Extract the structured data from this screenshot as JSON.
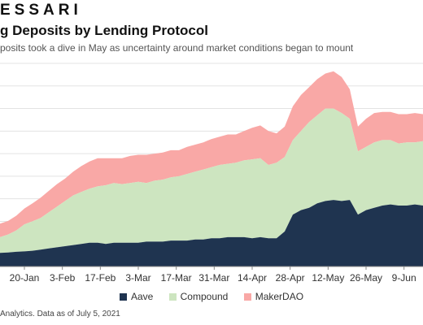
{
  "header": {
    "brand": "ESSARI",
    "title": "g Deposits by Lending Protocol",
    "subtitle": "posits took a dive in May as uncertainty around market conditions began to mount",
    "footnote": "Analytics. Data as of July 5, 2021"
  },
  "colors": {
    "Aave": "#1f3450",
    "Compound": "#cde5c0",
    "MakerDAO": "#f9a8a6",
    "grid": "#e3e3e3",
    "axis": "#888888"
  },
  "chart_data": {
    "type": "area",
    "stacked": true,
    "grid": true,
    "legend_position": "bottom-center",
    "x_tick_labels": [
      "20-Jan",
      "3-Feb",
      "17-Feb",
      "3-Mar",
      "17-Mar",
      "31-Mar",
      "14-Apr",
      "28-Apr",
      "12-May",
      "26-May",
      "9-Jun"
    ],
    "x_tick_days": [
      19,
      33,
      47,
      61,
      75,
      89,
      103,
      117,
      131,
      145,
      159
    ],
    "ylim": [
      0,
      9
    ],
    "y_gridlines": [
      1,
      2,
      3,
      4,
      5,
      6,
      7,
      8,
      9
    ],
    "x": [
      10,
      13,
      16,
      19,
      22,
      25,
      28,
      31,
      34,
      37,
      40,
      43,
      46,
      49,
      52,
      55,
      58,
      61,
      64,
      67,
      70,
      73,
      76,
      79,
      82,
      85,
      88,
      91,
      94,
      97,
      100,
      103,
      106,
      109,
      112,
      115,
      118,
      121,
      124,
      127,
      130,
      133,
      136,
      139,
      142,
      145,
      148,
      151,
      154,
      157,
      160,
      163,
      166
    ],
    "series": [
      {
        "name": "Aave",
        "values": [
          0.6,
          0.62,
          0.65,
          0.67,
          0.7,
          0.75,
          0.8,
          0.85,
          0.9,
          0.95,
          1.0,
          1.05,
          1.05,
          1.0,
          1.05,
          1.05,
          1.05,
          1.05,
          1.1,
          1.1,
          1.1,
          1.15,
          1.15,
          1.15,
          1.2,
          1.2,
          1.25,
          1.25,
          1.3,
          1.3,
          1.3,
          1.25,
          1.3,
          1.25,
          1.25,
          1.55,
          2.3,
          2.5,
          2.6,
          2.8,
          2.9,
          2.95,
          2.9,
          2.95,
          2.3,
          2.5,
          2.6,
          2.7,
          2.75,
          2.7,
          2.7,
          2.75,
          2.7
        ]
      },
      {
        "name": "Compound",
        "values": [
          0.7,
          0.8,
          0.95,
          1.2,
          1.3,
          1.4,
          1.6,
          1.8,
          2.0,
          2.2,
          2.3,
          2.4,
          2.5,
          2.6,
          2.65,
          2.6,
          2.65,
          2.7,
          2.6,
          2.7,
          2.75,
          2.8,
          2.85,
          2.95,
          3.0,
          3.1,
          3.15,
          3.25,
          3.25,
          3.3,
          3.4,
          3.5,
          3.5,
          3.25,
          3.35,
          3.3,
          3.3,
          3.5,
          3.8,
          3.9,
          4.1,
          4.05,
          3.9,
          3.6,
          2.8,
          2.8,
          2.9,
          2.9,
          2.85,
          2.75,
          2.8,
          2.75,
          2.85
        ]
      },
      {
        "name": "MakerDAO",
        "values": [
          0.6,
          0.6,
          0.65,
          0.7,
          0.8,
          0.9,
          0.95,
          1.0,
          1.0,
          1.05,
          1.15,
          1.2,
          1.25,
          1.2,
          1.1,
          1.15,
          1.2,
          1.2,
          1.25,
          1.2,
          1.2,
          1.2,
          1.15,
          1.2,
          1.2,
          1.2,
          1.25,
          1.25,
          1.3,
          1.25,
          1.3,
          1.4,
          1.45,
          1.5,
          1.3,
          1.35,
          1.5,
          1.6,
          1.55,
          1.6,
          1.55,
          1.65,
          1.6,
          1.3,
          1.1,
          1.25,
          1.3,
          1.25,
          1.25,
          1.3,
          1.25,
          1.3,
          1.2
        ]
      }
    ]
  },
  "legend": {
    "items": [
      "Aave",
      "Compound",
      "MakerDAO"
    ]
  }
}
